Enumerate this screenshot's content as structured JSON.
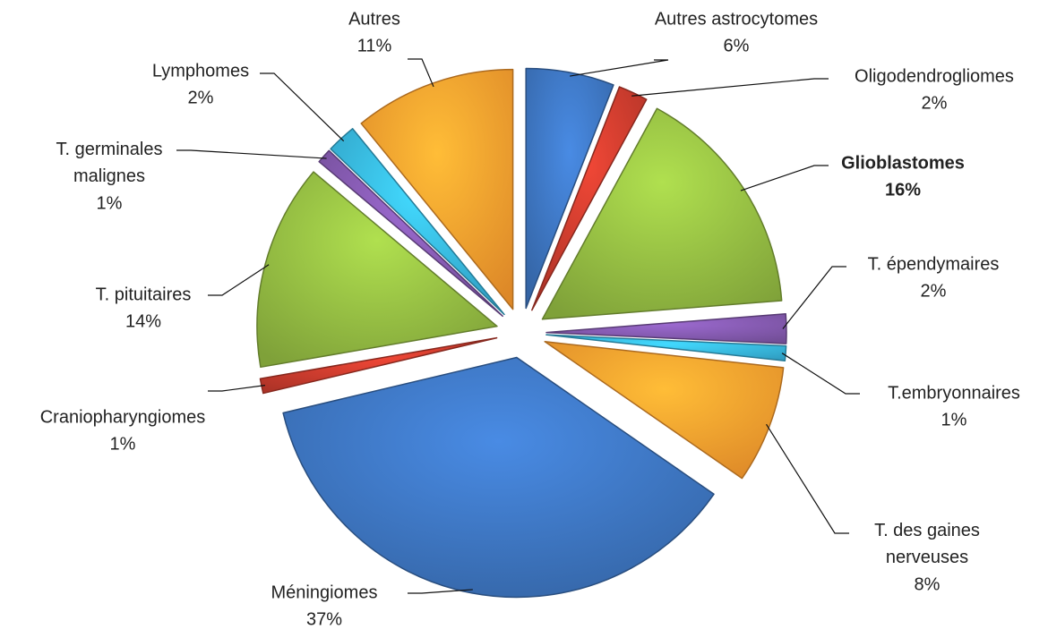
{
  "chart_data": {
    "type": "pie",
    "categories": [
      "Autres astrocytomes",
      "Oligodendrogliomes",
      "Glioblastomes",
      "T. épendymaires",
      "T.embryonnaires",
      "T. des gaines nerveuses",
      "Méningiomes",
      "Craniopharyngiomes",
      "T. pituitaires",
      "T. germinales malignes",
      "Lymphomes",
      "Autres"
    ],
    "values": [
      6,
      2,
      16,
      2,
      1,
      8,
      37,
      1,
      14,
      1,
      2,
      11
    ],
    "value_labels": [
      "6%",
      "2%",
      "16%",
      "2%",
      "1%",
      "8%",
      "37%",
      "1%",
      "14%",
      "1%",
      "2%",
      "11%"
    ],
    "colors": [
      "#3a6fb6",
      "#c0392b",
      "#8db33f",
      "#7d55a6",
      "#35aed6",
      "#f5972c",
      "#3a6fb6",
      "#c0392b",
      "#8db33f",
      "#7d55a6",
      "#35aed6",
      "#f5972c"
    ]
  }
}
